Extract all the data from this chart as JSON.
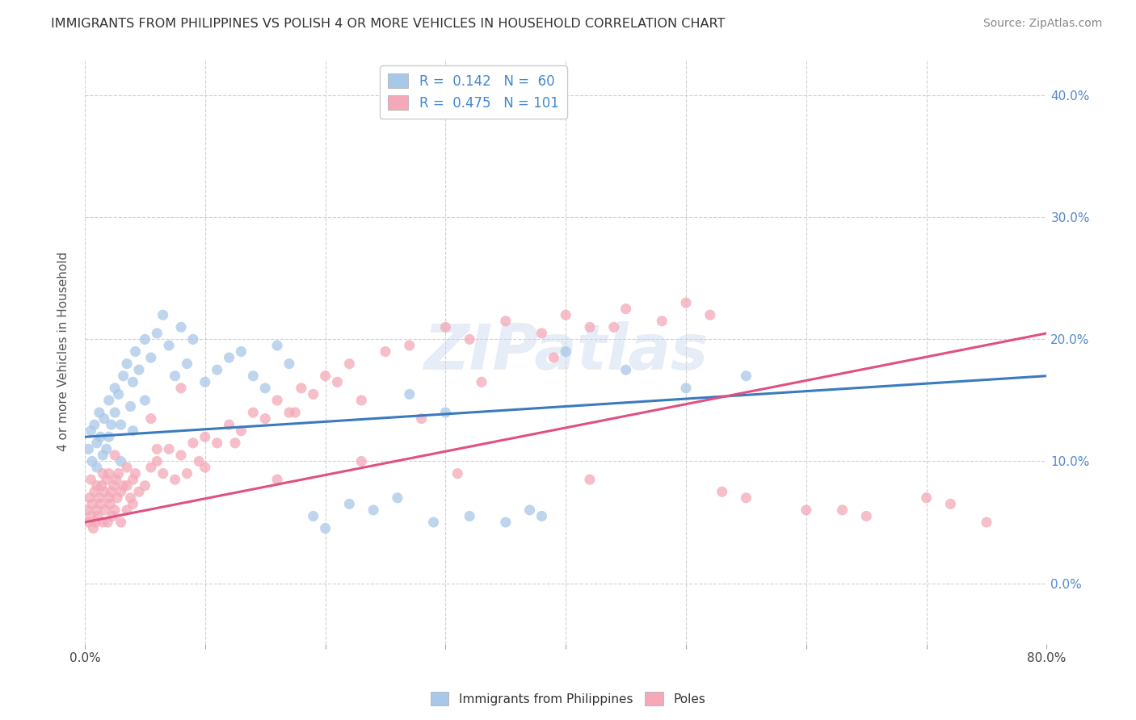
{
  "title": "IMMIGRANTS FROM PHILIPPINES VS POLISH 4 OR MORE VEHICLES IN HOUSEHOLD CORRELATION CHART",
  "source": "Source: ZipAtlas.com",
  "ylabel": "4 or more Vehicles in Household",
  "ytick_vals": [
    0.0,
    10.0,
    20.0,
    30.0,
    40.0
  ],
  "xlim": [
    0.0,
    80.0
  ],
  "ylim": [
    -5.0,
    43.0
  ],
  "legend_r1": "R =  0.142",
  "legend_n1": "N =  60",
  "legend_r2": "R =  0.475",
  "legend_n2": "N = 101",
  "color_blue": "#a8c8e8",
  "color_pink": "#f4a8b8",
  "color_blue_line": "#3a7abf",
  "color_pink_line": "#e05080",
  "watermark": "ZIPatlas",
  "blue_line_start": 12.0,
  "blue_line_end": 17.0,
  "pink_line_start": 5.0,
  "pink_line_end": 20.5,
  "philippines_x": [
    0.3,
    0.5,
    0.6,
    0.8,
    1.0,
    1.0,
    1.2,
    1.3,
    1.5,
    1.6,
    1.8,
    2.0,
    2.0,
    2.2,
    2.5,
    2.5,
    2.8,
    3.0,
    3.0,
    3.2,
    3.5,
    3.8,
    4.0,
    4.0,
    4.2,
    4.5,
    5.0,
    5.0,
    5.5,
    6.0,
    6.5,
    7.0,
    7.5,
    8.0,
    8.5,
    9.0,
    10.0,
    11.0,
    12.0,
    13.0,
    14.0,
    15.0,
    16.0,
    17.0,
    19.0,
    20.0,
    22.0,
    24.0,
    26.0,
    27.0,
    29.0,
    30.0,
    32.0,
    35.0,
    37.0,
    38.0,
    40.0,
    45.0,
    50.0,
    55.0
  ],
  "philippines_y": [
    11.0,
    12.5,
    10.0,
    13.0,
    11.5,
    9.5,
    14.0,
    12.0,
    10.5,
    13.5,
    11.0,
    15.0,
    12.0,
    13.0,
    16.0,
    14.0,
    15.5,
    13.0,
    10.0,
    17.0,
    18.0,
    14.5,
    16.5,
    12.5,
    19.0,
    17.5,
    20.0,
    15.0,
    18.5,
    20.5,
    22.0,
    19.5,
    17.0,
    21.0,
    18.0,
    20.0,
    16.5,
    17.5,
    18.5,
    19.0,
    17.0,
    16.0,
    19.5,
    18.0,
    5.5,
    4.5,
    6.5,
    6.0,
    7.0,
    15.5,
    5.0,
    14.0,
    5.5,
    5.0,
    6.0,
    5.5,
    19.0,
    17.5,
    16.0,
    17.0
  ],
  "poles_x": [
    0.2,
    0.3,
    0.4,
    0.5,
    0.6,
    0.7,
    0.8,
    0.9,
    1.0,
    1.0,
    1.1,
    1.2,
    1.3,
    1.4,
    1.5,
    1.6,
    1.7,
    1.8,
    1.9,
    2.0,
    2.0,
    2.1,
    2.2,
    2.3,
    2.4,
    2.5,
    2.6,
    2.7,
    2.8,
    3.0,
    3.0,
    3.2,
    3.5,
    3.5,
    3.8,
    4.0,
    4.0,
    4.2,
    4.5,
    5.0,
    5.5,
    6.0,
    6.5,
    7.0,
    7.5,
    8.0,
    8.5,
    9.0,
    9.5,
    10.0,
    11.0,
    12.0,
    13.0,
    14.0,
    15.0,
    16.0,
    17.0,
    18.0,
    19.0,
    20.0,
    21.0,
    22.0,
    25.0,
    27.0,
    30.0,
    32.0,
    35.0,
    38.0,
    40.0,
    42.0,
    45.0,
    48.0,
    50.0,
    52.0,
    55.0,
    60.0,
    65.0,
    70.0,
    72.0,
    75.0,
    5.5,
    8.0,
    12.5,
    17.5,
    23.0,
    28.0,
    33.0,
    39.0,
    44.0,
    0.5,
    1.5,
    2.5,
    3.5,
    6.0,
    10.0,
    16.0,
    23.0,
    31.0,
    42.0,
    53.0,
    63.0
  ],
  "poles_y": [
    6.0,
    5.0,
    7.0,
    5.5,
    6.5,
    4.5,
    7.5,
    5.0,
    6.0,
    8.0,
    5.5,
    7.0,
    6.5,
    8.0,
    5.0,
    7.5,
    6.0,
    8.5,
    5.0,
    7.0,
    9.0,
    6.5,
    7.5,
    5.5,
    8.0,
    6.0,
    8.5,
    7.0,
    9.0,
    7.5,
    5.0,
    8.0,
    6.0,
    9.5,
    7.0,
    8.5,
    6.5,
    9.0,
    7.5,
    8.0,
    9.5,
    10.0,
    9.0,
    11.0,
    8.5,
    10.5,
    9.0,
    11.5,
    10.0,
    12.0,
    11.5,
    13.0,
    12.5,
    14.0,
    13.5,
    15.0,
    14.0,
    16.0,
    15.5,
    17.0,
    16.5,
    18.0,
    19.0,
    19.5,
    21.0,
    20.0,
    21.5,
    20.5,
    22.0,
    21.0,
    22.5,
    21.5,
    23.0,
    22.0,
    7.0,
    6.0,
    5.5,
    7.0,
    6.5,
    5.0,
    13.5,
    16.0,
    11.5,
    14.0,
    15.0,
    13.5,
    16.5,
    18.5,
    21.0,
    8.5,
    9.0,
    10.5,
    8.0,
    11.0,
    9.5,
    8.5,
    10.0,
    9.0,
    8.5,
    7.5,
    6.0
  ]
}
